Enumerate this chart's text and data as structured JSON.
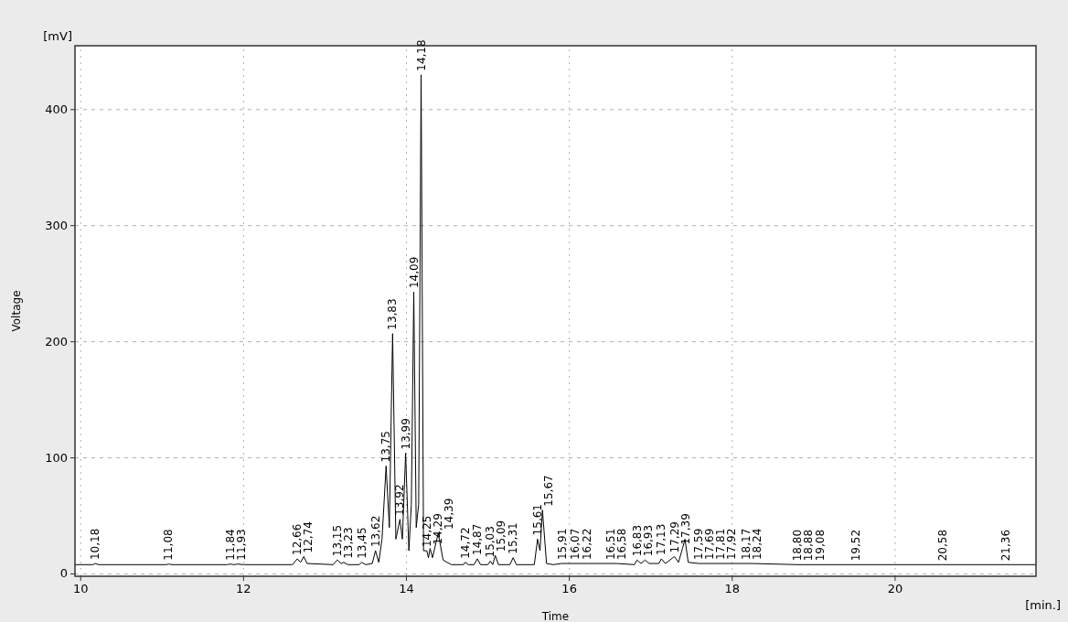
{
  "chart_data": {
    "type": "line",
    "xlabel": "Time",
    "ylabel": "Voltage",
    "xlim": [
      9.93,
      21.73
    ],
    "ylim": [
      -2,
      455
    ],
    "xticks": [
      10,
      12,
      14,
      16,
      18,
      20
    ],
    "yticks": [
      0,
      100,
      200,
      300,
      400
    ],
    "grid": true,
    "line_style": "solid",
    "marker": "none",
    "series": [
      {
        "color": "#000000",
        "x": [
          9.93,
          10.15,
          10.18,
          10.22,
          11.05,
          11.08,
          11.12,
          11.8,
          11.84,
          11.88,
          11.93,
          12.0,
          12.6,
          12.66,
          12.7,
          12.74,
          12.78,
          13.1,
          13.15,
          13.2,
          13.23,
          13.28,
          13.42,
          13.45,
          13.5,
          13.58,
          13.62,
          13.66,
          13.7,
          13.75,
          13.79,
          13.83,
          13.87,
          13.92,
          13.95,
          13.99,
          14.03,
          14.06,
          14.09,
          14.12,
          14.15,
          14.18,
          14.21,
          14.25,
          14.27,
          14.29,
          14.32,
          14.39,
          14.45,
          14.55,
          14.7,
          14.72,
          14.76,
          14.83,
          14.87,
          14.91,
          15.0,
          15.03,
          15.06,
          15.09,
          15.13,
          15.27,
          15.31,
          15.35,
          15.57,
          15.61,
          15.64,
          15.67,
          15.72,
          15.8,
          15.91,
          16.07,
          16.22,
          16.51,
          16.58,
          16.8,
          16.83,
          16.88,
          16.93,
          16.98,
          17.1,
          17.13,
          17.18,
          17.29,
          17.34,
          17.39,
          17.42,
          17.46,
          17.59,
          17.69,
          17.81,
          17.92,
          18.17,
          18.24,
          18.8,
          18.88,
          19.08,
          19.52,
          20.58,
          21.36,
          21.73
        ],
        "values": [
          8,
          8,
          9,
          8,
          8,
          8.5,
          8,
          8,
          8.5,
          8,
          8.5,
          8,
          8,
          13,
          10,
          15,
          9,
          8,
          12,
          9,
          10,
          8,
          8,
          10,
          8,
          9,
          20,
          10,
          30,
          93,
          40,
          207,
          30,
          47,
          30,
          104,
          20,
          60,
          243,
          40,
          60,
          430,
          20,
          20,
          14,
          22,
          14,
          35,
          12,
          8,
          8,
          10,
          8,
          8,
          13,
          8,
          8,
          11,
          8,
          16,
          8,
          8,
          14,
          8,
          8,
          30,
          20,
          55,
          9,
          8,
          9,
          9,
          9,
          9,
          9,
          8,
          12,
          9,
          12,
          9,
          9,
          13,
          9,
          15,
          10,
          22,
          30,
          10,
          9,
          9,
          9,
          9,
          9,
          9,
          8,
          8,
          8,
          8,
          8,
          8,
          8
        ]
      }
    ],
    "annotations": [
      "[mV]",
      "[min.]",
      {
        "text": "10,18",
        "x": 10.18,
        "y": 9
      },
      {
        "text": "11,08",
        "x": 11.08,
        "y": 8.5
      },
      {
        "text": "11,84",
        "x": 11.84,
        "y": 8.5
      },
      {
        "text": "11,93",
        "x": 11.93,
        "y": 8.5
      },
      {
        "text": "12,66",
        "x": 12.66,
        "y": 13
      },
      {
        "text": "12,74",
        "x": 12.74,
        "y": 15
      },
      {
        "text": "13,15",
        "x": 13.15,
        "y": 12
      },
      {
        "text": "13,23",
        "x": 13.23,
        "y": 10
      },
      {
        "text": "13,45",
        "x": 13.45,
        "y": 10
      },
      {
        "text": "13,62",
        "x": 13.62,
        "y": 20
      },
      {
        "text": "13,75",
        "x": 13.75,
        "y": 93
      },
      {
        "text": "13,83",
        "x": 13.83,
        "y": 207
      },
      {
        "text": "13,92",
        "x": 13.92,
        "y": 47
      },
      {
        "text": "13,99",
        "x": 13.99,
        "y": 104
      },
      {
        "text": "14,09",
        "x": 14.09,
        "y": 243
      },
      {
        "text": "14,18",
        "x": 14.18,
        "y": 430
      },
      {
        "text": "14,25",
        "x": 14.25,
        "y": 20
      },
      {
        "text": "14,29",
        "x": 14.29,
        "y": 22
      },
      {
        "text": "14,39",
        "x": 14.39,
        "y": 35
      },
      {
        "text": "14,72",
        "x": 14.72,
        "y": 10
      },
      {
        "text": "14,87",
        "x": 14.87,
        "y": 13
      },
      {
        "text": "15,03",
        "x": 15.03,
        "y": 11
      },
      {
        "text": "15,09",
        "x": 15.09,
        "y": 16
      },
      {
        "text": "15,31",
        "x": 15.31,
        "y": 14
      },
      {
        "text": "15,61",
        "x": 15.61,
        "y": 30
      },
      {
        "text": "15,67",
        "x": 15.67,
        "y": 55
      },
      {
        "text": "15,91",
        "x": 15.91,
        "y": 9
      },
      {
        "text": "16,07",
        "x": 16.07,
        "y": 9
      },
      {
        "text": "16,22",
        "x": 16.22,
        "y": 9
      },
      {
        "text": "16,51",
        "x": 16.51,
        "y": 9
      },
      {
        "text": "16,58",
        "x": 16.58,
        "y": 9
      },
      {
        "text": "16,83",
        "x": 16.83,
        "y": 12
      },
      {
        "text": "16,93",
        "x": 16.93,
        "y": 12
      },
      {
        "text": "17,13",
        "x": 17.13,
        "y": 13
      },
      {
        "text": "17,29",
        "x": 17.29,
        "y": 15
      },
      {
        "text": "17,39",
        "x": 17.39,
        "y": 22
      },
      {
        "text": "17,59",
        "x": 17.59,
        "y": 9
      },
      {
        "text": "17,69",
        "x": 17.69,
        "y": 9
      },
      {
        "text": "17,81",
        "x": 17.81,
        "y": 9
      },
      {
        "text": "17,92",
        "x": 17.92,
        "y": 9
      },
      {
        "text": "18,17",
        "x": 18.17,
        "y": 9
      },
      {
        "text": "18,24",
        "x": 18.24,
        "y": 9
      },
      {
        "text": "18,80",
        "x": 18.8,
        "y": 8
      },
      {
        "text": "18,88",
        "x": 18.88,
        "y": 8
      },
      {
        "text": "19,08",
        "x": 19.08,
        "y": 8
      },
      {
        "text": "19,52",
        "x": 19.52,
        "y": 8
      },
      {
        "text": "20,58",
        "x": 20.58,
        "y": 8
      },
      {
        "text": "21,36",
        "x": 21.36,
        "y": 8
      }
    ]
  }
}
